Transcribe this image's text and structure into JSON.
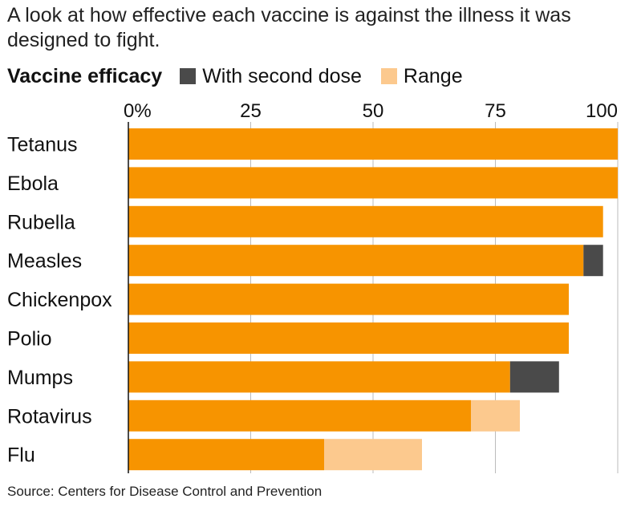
{
  "subtitle": "A look at how effective each vaccine is against the illness it was designed to fight.",
  "source": "Source: Centers for Disease Control and Prevention",
  "colors": {
    "main": "#f79400",
    "second_dose": "#4a4a4a",
    "range": "#fcc98e",
    "axis": "#111111",
    "grid": "#bbbbbb"
  },
  "chart_data": {
    "type": "bar",
    "orientation": "horizontal",
    "stacked": true,
    "title": "Vaccine efficacy",
    "categories": [
      "Tetanus",
      "Ebola",
      "Rubella",
      "Measles",
      "Chickenpox",
      "Polio",
      "Mumps",
      "Rotavirus",
      "Flu"
    ],
    "series": [
      {
        "name": "",
        "values": [
          100,
          100,
          97,
          93,
          90,
          90,
          78,
          70,
          40
        ]
      },
      {
        "name": "With second dose",
        "values": [
          0,
          0,
          0,
          4,
          0,
          0,
          10,
          0,
          0
        ]
      },
      {
        "name": "Range",
        "values": [
          0,
          0,
          0,
          0,
          0,
          0,
          0,
          10,
          20
        ]
      }
    ],
    "xlim": [
      0,
      100
    ],
    "x_ticks": [
      0,
      25,
      50,
      75,
      100
    ],
    "x_tick_labels": [
      "0%",
      "25",
      "50",
      "75",
      "100"
    ],
    "legend": "top-left",
    "grid": true
  }
}
